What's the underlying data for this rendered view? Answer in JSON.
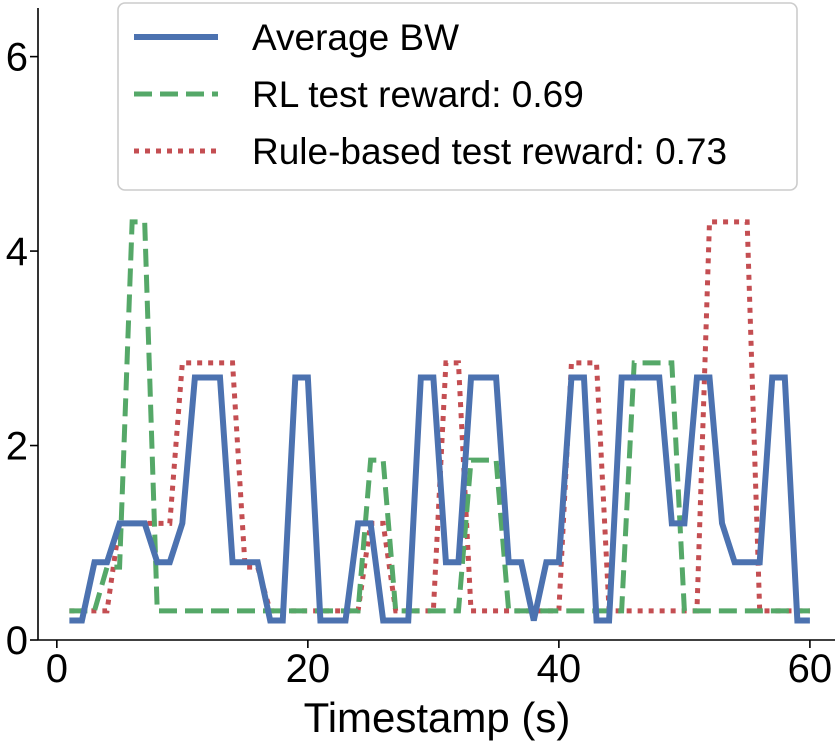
{
  "chart_data": {
    "type": "line",
    "title": "",
    "xlabel": "Timestamp (s)",
    "ylabel": "",
    "xlim": [
      -1.5,
      62
    ],
    "ylim": [
      0,
      6.5
    ],
    "xticks": [
      0,
      20,
      40,
      60
    ],
    "yticks": [
      0,
      2,
      4,
      6
    ],
    "xtick_labels": [
      "0",
      "20",
      "40",
      "60"
    ],
    "ytick_labels": [
      "0",
      "2",
      "4",
      "6"
    ],
    "grid": false,
    "legend_position": "top",
    "series": [
      {
        "name": "Average BW",
        "color": "#4c72b0",
        "style": "solid",
        "x": [
          1,
          2,
          3,
          4,
          5,
          6,
          7,
          8,
          9,
          10,
          11,
          12,
          13,
          14,
          15,
          16,
          17,
          18,
          19,
          20,
          21,
          22,
          23,
          24,
          25,
          26,
          27,
          28,
          29,
          30,
          31,
          32,
          33,
          34,
          35,
          36,
          37,
          38,
          39,
          40,
          41,
          42,
          43,
          44,
          45,
          46,
          47,
          48,
          49,
          50,
          51,
          52,
          53,
          54,
          55,
          56,
          57,
          58,
          59,
          60
        ],
        "values": [
          0.2,
          0.2,
          0.8,
          0.8,
          1.2,
          1.2,
          1.2,
          0.8,
          0.8,
          1.2,
          2.7,
          2.7,
          2.7,
          0.8,
          0.8,
          0.8,
          0.2,
          0.2,
          2.7,
          2.7,
          0.2,
          0.2,
          0.2,
          1.2,
          1.2,
          0.2,
          0.2,
          0.2,
          2.7,
          2.7,
          0.8,
          0.8,
          2.7,
          2.7,
          2.7,
          0.8,
          0.8,
          0.2,
          0.8,
          0.8,
          2.7,
          2.7,
          0.2,
          0.2,
          2.7,
          2.7,
          2.7,
          2.7,
          1.2,
          1.2,
          2.7,
          2.7,
          1.2,
          0.8,
          0.8,
          0.8,
          2.7,
          2.7,
          0.2,
          0.2
        ]
      },
      {
        "name": "RL test reward: 0.69",
        "color": "#55a868",
        "style": "dashed",
        "x": [
          1,
          2,
          3,
          4,
          5,
          6,
          7,
          8,
          9,
          10,
          11,
          12,
          13,
          14,
          15,
          16,
          17,
          18,
          19,
          20,
          21,
          22,
          23,
          24,
          25,
          26,
          27,
          28,
          29,
          30,
          31,
          32,
          33,
          34,
          35,
          36,
          37,
          38,
          39,
          40,
          41,
          42,
          43,
          44,
          45,
          46,
          47,
          48,
          49,
          50,
          51,
          52,
          53,
          54,
          55,
          56,
          57,
          58,
          59,
          60
        ],
        "values": [
          0.3,
          0.3,
          0.3,
          0.75,
          0.75,
          4.3,
          4.3,
          0.3,
          0.3,
          0.3,
          0.3,
          0.3,
          0.3,
          0.3,
          0.3,
          0.3,
          0.3,
          0.3,
          0.3,
          0.3,
          0.3,
          0.3,
          0.3,
          0.3,
          1.85,
          1.85,
          0.3,
          0.3,
          0.3,
          0.3,
          0.3,
          0.3,
          1.85,
          1.85,
          1.85,
          0.3,
          0.3,
          0.3,
          0.3,
          0.3,
          0.3,
          0.3,
          0.3,
          0.3,
          0.3,
          2.85,
          2.85,
          2.85,
          2.85,
          0.3,
          0.3,
          0.3,
          0.3,
          0.3,
          0.3,
          0.3,
          0.3,
          0.3,
          0.3,
          0.3
        ]
      },
      {
        "name": "Rule-based test reward: 0.73",
        "color": "#c44e52",
        "style": "dotted",
        "x": [
          1,
          2,
          3,
          4,
          5,
          6,
          7,
          8,
          9,
          10,
          11,
          12,
          13,
          14,
          15,
          16,
          17,
          18,
          19,
          20,
          21,
          22,
          23,
          24,
          25,
          26,
          27,
          28,
          29,
          30,
          31,
          32,
          33,
          34,
          35,
          36,
          37,
          38,
          39,
          40,
          41,
          42,
          43,
          44,
          45,
          46,
          47,
          48,
          49,
          50,
          51,
          52,
          53,
          54,
          55,
          56,
          57,
          58,
          59,
          60
        ],
        "values": [
          0.3,
          0.3,
          0.3,
          0.3,
          1.2,
          1.2,
          1.2,
          1.2,
          1.2,
          2.85,
          2.85,
          2.85,
          2.85,
          2.85,
          0.75,
          0.75,
          0.3,
          0.3,
          0.3,
          0.3,
          0.3,
          0.3,
          0.3,
          0.3,
          1.2,
          1.2,
          0.3,
          0.3,
          0.3,
          0.3,
          2.85,
          2.85,
          0.3,
          0.3,
          0.3,
          0.3,
          0.3,
          0.3,
          0.3,
          0.3,
          2.85,
          2.85,
          2.85,
          0.3,
          0.3,
          0.3,
          0.3,
          0.3,
          0.3,
          0.3,
          0.3,
          4.3,
          4.3,
          4.3,
          4.3,
          0.3,
          0.3,
          0.3,
          0.3,
          0.3
        ]
      }
    ]
  }
}
